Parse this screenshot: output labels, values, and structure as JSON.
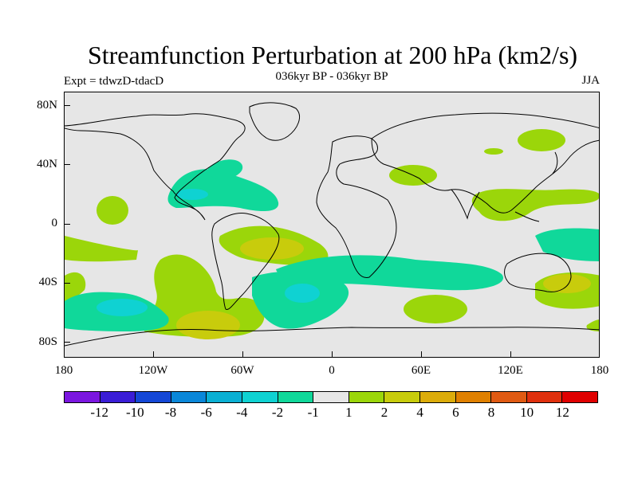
{
  "plot": {
    "title": "Streamfunction Perturbation at 200 hPa (km2/s)",
    "expt_label": "Expt = tdwzD-tdacD",
    "period_label": "036kyr BP - 036kyr BP",
    "season_label": "JJA"
  },
  "map": {
    "lat_ticks": [
      "80N",
      "40N",
      "0",
      "40S",
      "80S"
    ],
    "lon_ticks": [
      "180",
      "120W",
      "60W",
      "0",
      "60E",
      "120E",
      "180"
    ],
    "background_color": "#e6e6e6"
  },
  "colorbar": {
    "colors": [
      "#7b16e0",
      "#3a1dd6",
      "#1447d6",
      "#0a87d9",
      "#0ab0d4",
      "#0fd2d2",
      "#10d89a",
      "#e6e6e6",
      "#9bd60a",
      "#c8cc0c",
      "#dcac0a",
      "#e08000",
      "#e05a12",
      "#e0300d",
      "#e00000"
    ],
    "labels": [
      "-12",
      "-10",
      "-8",
      "-6",
      "-4",
      "-2",
      "-1",
      "1",
      "2",
      "4",
      "6",
      "8",
      "10",
      "12"
    ]
  }
}
